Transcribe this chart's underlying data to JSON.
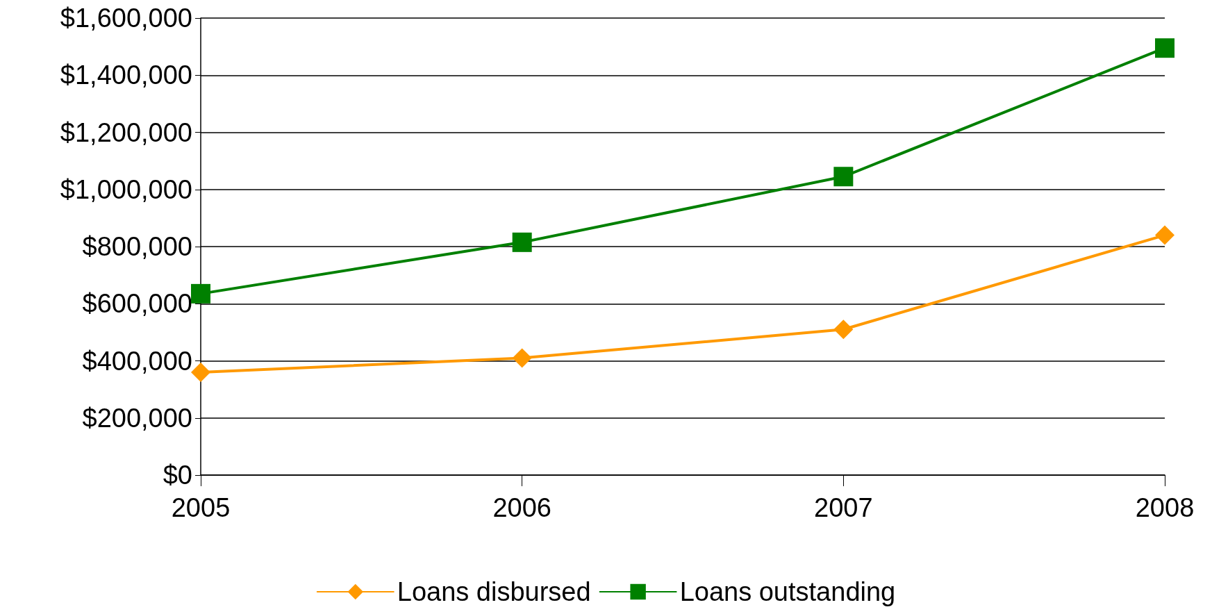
{
  "chart_data": {
    "type": "line",
    "categories": [
      "2005",
      "2006",
      "2007",
      "2008"
    ],
    "series": [
      {
        "name": "Loans disbursed",
        "color": "#ff9900",
        "marker": "diamond",
        "values": [
          360000,
          410000,
          510000,
          840000
        ]
      },
      {
        "name": "Loans outstanding",
        "color": "#008000",
        "marker": "square",
        "values": [
          635000,
          815000,
          1045000,
          1495000
        ]
      }
    ],
    "ylim": [
      0,
      1600000
    ],
    "yticks": [
      {
        "value": 0,
        "label": "$0"
      },
      {
        "value": 200000,
        "label": "$200,000"
      },
      {
        "value": 400000,
        "label": "$400,000"
      },
      {
        "value": 600000,
        "label": "$600,000"
      },
      {
        "value": 800000,
        "label": "$800,000"
      },
      {
        "value": 1000000,
        "label": "$1,000,000"
      },
      {
        "value": 1200000,
        "label": "$1,200,000"
      },
      {
        "value": 1400000,
        "label": "$1,400,000"
      },
      {
        "value": 1600000,
        "label": "$1,600,000"
      }
    ],
    "grid": "y",
    "legend": "bottom",
    "line_style": "solid"
  }
}
